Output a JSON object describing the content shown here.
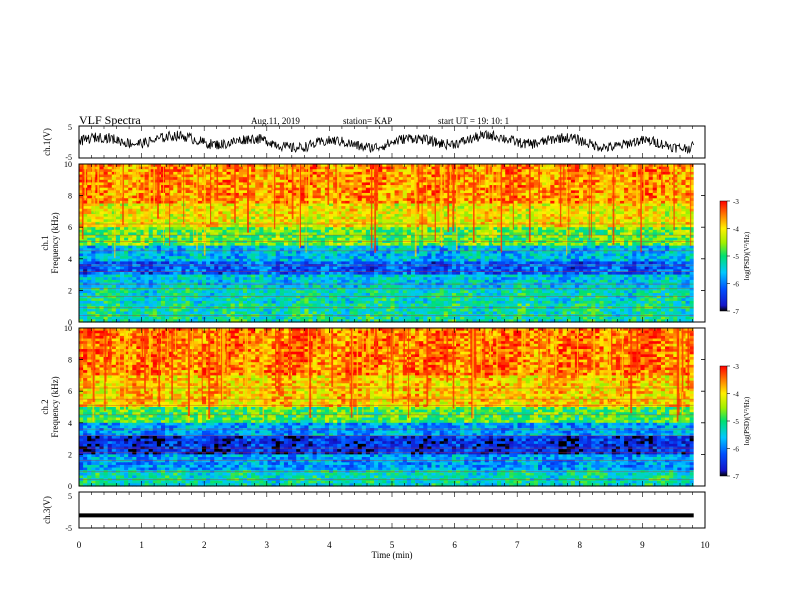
{
  "header": {
    "title": "VLF Spectra",
    "date": "Aug.11, 2019",
    "station": "station= KAP",
    "start": "start  UT =   19: 10: 1"
  },
  "chart_data": [
    {
      "type": "line",
      "panel": "ch1-waveform",
      "ylabel": "ch.1(V)",
      "ylim": [
        -5,
        5
      ],
      "yticks": [
        "5",
        "-5"
      ],
      "x_range": [
        0,
        9.82
      ],
      "description_values": "noisy waveform oscillating roughly between -3 and 3 V",
      "color": "#000000"
    },
    {
      "type": "heatmap",
      "panel": "ch1-spectrogram",
      "ylabel": "ch.1\nFrequency (kHz)",
      "ylabel_line1": "ch.1",
      "ylabel_line2": "Frequency (kHz)",
      "ylim": [
        0,
        10
      ],
      "yticks": [
        "0",
        "2",
        "4",
        "6",
        "8",
        "10"
      ],
      "x_range": [
        0,
        9.82
      ],
      "colorbar": {
        "label": "log(PSD)(V²/Hz)",
        "range": [
          -7,
          -3
        ],
        "ticks": [
          "-3",
          "-4",
          "-5",
          "-6",
          "-7"
        ]
      },
      "bands_kHz": [
        {
          "from": 0,
          "to": 1.2,
          "level": -5.2
        },
        {
          "from": 1.2,
          "to": 2.2,
          "level": -5.3
        },
        {
          "from": 2.2,
          "to": 3.0,
          "level": -5.5
        },
        {
          "from": 3.0,
          "to": 3.8,
          "level": -6.2
        },
        {
          "from": 3.8,
          "to": 4.8,
          "level": -5.6
        },
        {
          "from": 4.8,
          "to": 6.0,
          "level": -4.7
        },
        {
          "from": 6.0,
          "to": 7.5,
          "level": -4.1
        },
        {
          "from": 7.5,
          "to": 10.0,
          "level": -3.6
        }
      ]
    },
    {
      "type": "heatmap",
      "panel": "ch2-spectrogram",
      "ylabel": "ch.2\nFrequency (kHz)",
      "ylabel_line1": "ch.2",
      "ylabel_line2": "Frequency (kHz)",
      "ylim": [
        0,
        10
      ],
      "yticks": [
        "0",
        "2",
        "4",
        "6",
        "8",
        "10"
      ],
      "x_range": [
        0,
        9.82
      ],
      "colorbar": {
        "label": "log(PSD)(V²/Hz)",
        "range": [
          -7,
          -3
        ],
        "ticks": [
          "-3",
          "-4",
          "-5",
          "-6",
          "-7"
        ]
      },
      "bands_kHz": [
        {
          "from": 0,
          "to": 1.0,
          "level": -5.3
        },
        {
          "from": 1.0,
          "to": 2.0,
          "level": -5.8
        },
        {
          "from": 2.0,
          "to": 3.2,
          "level": -6.5
        },
        {
          "from": 3.2,
          "to": 4.0,
          "level": -5.8
        },
        {
          "from": 4.0,
          "to": 5.0,
          "level": -4.8
        },
        {
          "from": 5.0,
          "to": 7.0,
          "level": -3.9
        },
        {
          "from": 7.0,
          "to": 10.0,
          "level": -3.5
        }
      ]
    },
    {
      "type": "line",
      "panel": "ch3-waveform",
      "ylabel": "ch.3(V)",
      "ylim": [
        -5,
        5
      ],
      "yticks": [
        "5",
        "-5"
      ],
      "x_range": [
        0,
        9.82
      ],
      "values_constant": -1.5,
      "color": "#000000"
    }
  ],
  "xaxis": {
    "label": "Time (min)",
    "range": [
      0,
      10
    ],
    "ticks": [
      "0",
      "1",
      "2",
      "3",
      "4",
      "5",
      "6",
      "7",
      "8",
      "9",
      "10"
    ]
  }
}
